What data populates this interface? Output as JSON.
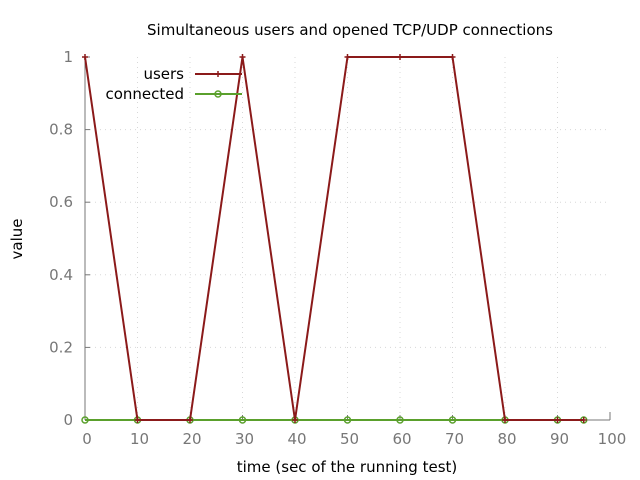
{
  "chart_data": {
    "type": "line",
    "title": "Simultaneous users and opened TCP/UDP connections",
    "xlabel": "time (sec of the running test)",
    "ylabel": "value",
    "xlim": [
      0,
      100
    ],
    "ylim": [
      0,
      1
    ],
    "x_ticks": [
      "0",
      "10",
      "20",
      "30",
      "40",
      "50",
      "60",
      "70",
      "80",
      "90",
      "100"
    ],
    "y_ticks": [
      "0",
      "0.2",
      "0.4",
      "0.6",
      "0.8",
      "1"
    ],
    "x_tick_values": [
      0,
      10,
      20,
      30,
      40,
      50,
      60,
      70,
      80,
      90,
      100
    ],
    "y_tick_values": [
      0,
      0.2,
      0.4,
      0.6,
      0.8,
      1
    ],
    "grid": true,
    "legend_position": "top-left",
    "series": [
      {
        "name": "users",
        "color": "#8b1a1a",
        "marker": "plus",
        "points": [
          [
            0,
            1
          ],
          [
            10,
            0
          ],
          [
            20,
            0
          ],
          [
            30,
            1
          ],
          [
            40,
            0
          ],
          [
            50,
            1
          ],
          [
            60,
            1
          ],
          [
            70,
            1
          ],
          [
            80,
            0
          ],
          [
            90,
            0
          ],
          [
            95,
            0
          ]
        ]
      },
      {
        "name": "connected",
        "color": "#5aa02c",
        "marker": "circle",
        "points": [
          [
            0,
            0
          ],
          [
            10,
            0
          ],
          [
            20,
            0
          ],
          [
            30,
            0
          ],
          [
            40,
            0
          ],
          [
            50,
            0
          ],
          [
            60,
            0
          ],
          [
            70,
            0
          ],
          [
            80,
            0
          ],
          [
            90,
            0
          ],
          [
            95,
            0
          ]
        ]
      }
    ]
  }
}
